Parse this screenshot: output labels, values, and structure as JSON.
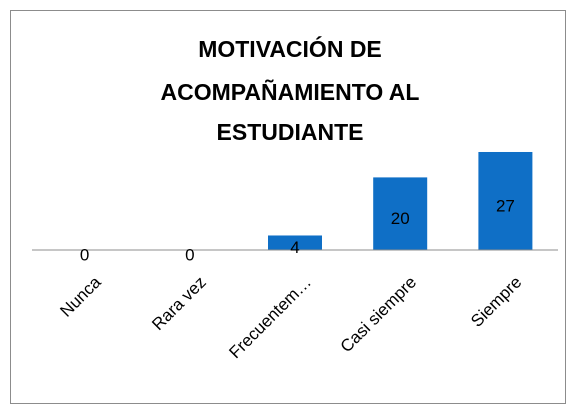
{
  "chart_data": {
    "type": "bar",
    "title": [
      "MOTIVACIÓN DE",
      "ACOMPAÑAMIENTO AL",
      "ESTUDIANTE"
    ],
    "categories": [
      "Nunca",
      "Rara vez",
      "Frecuentem…",
      "Casi siempre",
      "Siempre"
    ],
    "values": [
      0,
      0,
      4,
      20,
      27
    ],
    "color": "#0f6fc6"
  }
}
